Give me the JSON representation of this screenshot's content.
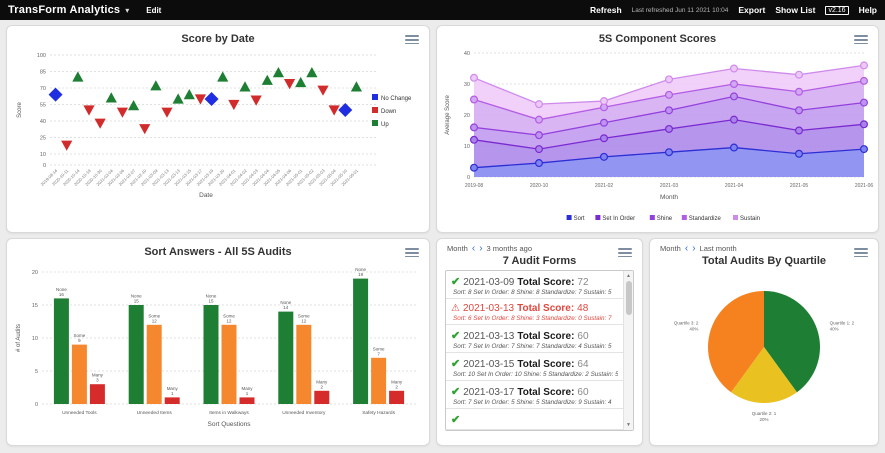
{
  "topbar": {
    "title": "TransForm Analytics",
    "menu_edit": "Edit",
    "refresh": "Refresh",
    "last_refreshed": "Last refreshed Jun 11 2021 10:04",
    "export": "Export",
    "show_list": "Show List",
    "version": "v2.16",
    "help": "Help"
  },
  "panels": {
    "audit_forms": {
      "period_label": "Month",
      "period_value": "3 months ago",
      "title": "7 Audit Forms"
    },
    "quartile": {
      "period_label": "Month",
      "period_value": "Last month"
    }
  },
  "audit_list": [
    {
      "status": "ok",
      "date": "2021-03-09",
      "score_label": "Total Score:",
      "score": "72",
      "detail": "Sort: 8 Set In Order: 8 Shine: 8 Standardize: 7 Sustain: 5"
    },
    {
      "status": "warning",
      "date": "2021-03-13",
      "score_label": "Total Score:",
      "score": "48",
      "detail": "Sort: 6 Set In Order: 8 Shine: 3 Standardize: 0 Sustain: 7"
    },
    {
      "status": "ok",
      "date": "2021-03-13",
      "score_label": "Total Score:",
      "score": "60",
      "detail": "Sort: 7 Set In Order: 7 Shine: 7 Standardize: 4 Sustain: 5"
    },
    {
      "status": "ok",
      "date": "2021-03-15",
      "score_label": "Total Score:",
      "score": "64",
      "detail": "Sort: 10 Set In Order: 10 Shine: 5 Standardize: 2 Sustain: 5"
    },
    {
      "status": "ok",
      "date": "2021-03-17",
      "score_label": "Total Score:",
      "score": "60",
      "detail": "Sort: 7 Set In Order: 5 Shine: 5 Standardize: 9 Sustain: 4"
    },
    {
      "status": "ok",
      "date": "",
      "score_label": "",
      "score": "",
      "detail": ""
    }
  ],
  "chart_data": [
    {
      "type": "scatter",
      "title": "Score by Date",
      "xlabel": "Date",
      "ylabel": "Score",
      "ylim": [
        0,
        100
      ],
      "yticks": [
        0,
        10,
        25,
        40,
        55,
        70,
        85,
        100
      ],
      "legend_position": "right",
      "legend": [
        {
          "name": "No Change",
          "color": "#1f2ee0",
          "shape": "diamond"
        },
        {
          "name": "Down",
          "color": "#d22b2b",
          "shape": "triangle-down"
        },
        {
          "name": "Up",
          "color": "#1e7e34",
          "shape": "triangle-up"
        }
      ],
      "points": [
        {
          "x": "2019-08-14",
          "y": 64,
          "series": "No Change"
        },
        {
          "x": "2020-10-11",
          "y": 18,
          "series": "Down"
        },
        {
          "x": "2020-10-14",
          "y": 80,
          "series": "Up"
        },
        {
          "x": "2020-10-19",
          "y": 50,
          "series": "Down"
        },
        {
          "x": "2020-10-30",
          "y": 38,
          "series": "Down"
        },
        {
          "x": "2021-02-04",
          "y": 61,
          "series": "Up"
        },
        {
          "x": "2021-02-06",
          "y": 48,
          "series": "Down"
        },
        {
          "x": "2021-02-07",
          "y": 54,
          "series": "Up"
        },
        {
          "x": "2021-02-10",
          "y": 33,
          "series": "Down"
        },
        {
          "x": "2021-03-09",
          "y": 72,
          "series": "Up"
        },
        {
          "x": "2021-03-13",
          "y": 48,
          "series": "Down"
        },
        {
          "x": "2021-03-13",
          "y": 60,
          "series": "Up"
        },
        {
          "x": "2021-03-15",
          "y": 64,
          "series": "Up"
        },
        {
          "x": "2021-03-17",
          "y": 60,
          "series": "Down"
        },
        {
          "x": "2021-03-19",
          "y": 60,
          "series": "No Change"
        },
        {
          "x": "2021-03-20",
          "y": 80,
          "series": "Up"
        },
        {
          "x": "2021-04-01",
          "y": 55,
          "series": "Down"
        },
        {
          "x": "2021-04-02",
          "y": 71,
          "series": "Up"
        },
        {
          "x": "2021-04-03",
          "y": 59,
          "series": "Down"
        },
        {
          "x": "2021-04-04",
          "y": 77,
          "series": "Up"
        },
        {
          "x": "2021-04-05",
          "y": 84,
          "series": "Up"
        },
        {
          "x": "2021-04-06",
          "y": 74,
          "series": "Down"
        },
        {
          "x": "2021-05-01",
          "y": 75,
          "series": "Up"
        },
        {
          "x": "2021-05-02",
          "y": 84,
          "series": "Up"
        },
        {
          "x": "2021-05-03",
          "y": 68,
          "series": "Down"
        },
        {
          "x": "2021-05-04",
          "y": 50,
          "series": "Down"
        },
        {
          "x": "2021-05-10",
          "y": 50,
          "series": "No Change"
        },
        {
          "x": "2021-06-01",
          "y": 71,
          "series": "Up"
        }
      ]
    },
    {
      "type": "area",
      "stacked": true,
      "title": "5S Component Scores",
      "xlabel": "Month",
      "ylabel": "Average Score",
      "ylim": [
        0,
        40
      ],
      "yticks": [
        0,
        10,
        20,
        30,
        40
      ],
      "legend_position": "bottom",
      "categories": [
        "2019-08",
        "2020-10",
        "2021-02",
        "2021-03",
        "2021-04",
        "2021-05",
        "2021-06"
      ],
      "series": [
        {
          "name": "Sort",
          "color": "#2b2fd4",
          "fill": "#8083f0",
          "values": [
            3,
            4.5,
            6.5,
            8,
            9.5,
            7.5,
            9
          ]
        },
        {
          "name": "Set In Order",
          "color": "#7a2ad0",
          "fill": "#a983ea",
          "values": [
            9,
            4.5,
            6,
            7.5,
            9,
            7.5,
            8
          ]
        },
        {
          "name": "Shine",
          "color": "#9340dc",
          "fill": "#bd95ee",
          "values": [
            4,
            4.5,
            5,
            6,
            7.5,
            6.5,
            7
          ]
        },
        {
          "name": "Standardize",
          "color": "#b35ce4",
          "fill": "#d2a8f2",
          "values": [
            9,
            5,
            5,
            5,
            4,
            6,
            7
          ]
        },
        {
          "name": "Sustain",
          "color": "#cf8bec",
          "fill": "#eec9f8",
          "values": [
            7,
            5,
            2,
            5,
            5,
            5.5,
            5
          ]
        }
      ]
    },
    {
      "type": "bar",
      "title": "Sort Answers - All 5S Audits",
      "xlabel": "Sort Questions",
      "ylabel": "# of Audits",
      "ylim": [
        0,
        20
      ],
      "yticks": [
        0,
        5,
        10,
        15,
        20
      ],
      "categories": [
        "Unneeded Tools",
        "Unneeded Items",
        "Items in Walkways",
        "Unneeded Inventory",
        "Safety Hazards"
      ],
      "series": [
        {
          "name": "None",
          "color": "#1e7e34",
          "values": [
            16,
            15,
            15,
            14,
            19
          ]
        },
        {
          "name": "Some",
          "color": "#f5882e",
          "values": [
            9,
            12,
            12,
            12,
            7
          ]
        },
        {
          "name": "Many",
          "color": "#d62b2b",
          "values": [
            3,
            1,
            1,
            2,
            2
          ]
        }
      ]
    },
    {
      "type": "pie",
      "title": "Total Audits By Quartile",
      "slices": [
        {
          "label": "Quartile 1: 2",
          "pct_label": "40%",
          "value": 40,
          "color": "#1e7e34"
        },
        {
          "label": "Quartile 2: 1",
          "pct_label": "20%",
          "value": 20,
          "color": "#e9c120"
        },
        {
          "label": "Quartile 3: 2",
          "pct_label": "40%",
          "value": 40,
          "color": "#f5821e"
        }
      ]
    }
  ]
}
